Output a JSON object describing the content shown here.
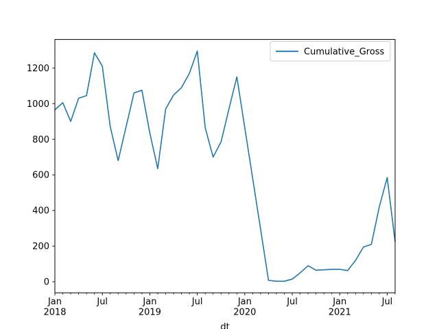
{
  "figure": {
    "background": "#ffffff",
    "text_color": "#000000"
  },
  "chart_data": {
    "type": "line",
    "title": "",
    "xlabel": "dt",
    "ylabel": "",
    "grid": false,
    "legend": {
      "label": "Cumulative_Gross",
      "position": "upper right"
    },
    "line_color": "#1f77b4",
    "categories": [
      "2018-01",
      "2018-02",
      "2018-03",
      "2018-04",
      "2018-05",
      "2018-06",
      "2018-07",
      "2018-08",
      "2018-09",
      "2018-10",
      "2018-11",
      "2018-12",
      "2019-01",
      "2019-02",
      "2019-03",
      "2019-04",
      "2019-05",
      "2019-06",
      "2019-07",
      "2019-08",
      "2019-09",
      "2019-10",
      "2019-11",
      "2019-12",
      "2020-01",
      "2020-02",
      "2020-03",
      "2020-04",
      "2020-05",
      "2020-06",
      "2020-07",
      "2020-08",
      "2020-09",
      "2020-10",
      "2020-11",
      "2020-12",
      "2021-01",
      "2021-02",
      "2021-03",
      "2021-04",
      "2021-05",
      "2021-06",
      "2021-07",
      "2021-08"
    ],
    "series": [
      {
        "name": "Cumulative_Gross",
        "values": [
          965,
          1005,
          900,
          1030,
          1045,
          1285,
          1210,
          870,
          680,
          870,
          1060,
          1075,
          835,
          635,
          970,
          1048,
          1090,
          1170,
          1295,
          865,
          700,
          785,
          970,
          1150,
          865,
          580,
          295,
          8,
          3,
          3,
          15,
          50,
          90,
          65,
          67,
          70,
          70,
          63,
          120,
          195,
          210,
          420,
          585,
          225
        ]
      }
    ],
    "ylim": [
      -62,
      1360
    ],
    "xlim_tight": true,
    "y_ticks": [
      0,
      200,
      400,
      600,
      800,
      1000,
      1200
    ],
    "x_major_ticks": [
      {
        "index": 0,
        "label": "Jan",
        "year": "2018"
      },
      {
        "index": 6,
        "label": "Jul"
      },
      {
        "index": 12,
        "label": "Jan",
        "year": "2019"
      },
      {
        "index": 18,
        "label": "Jul"
      },
      {
        "index": 24,
        "label": "Jan",
        "year": "2020"
      },
      {
        "index": 30,
        "label": "Jul"
      },
      {
        "index": 36,
        "label": "Jan",
        "year": "2021"
      },
      {
        "index": 42,
        "label": "Jul"
      }
    ],
    "x_minor_ticks_every_month": true
  }
}
